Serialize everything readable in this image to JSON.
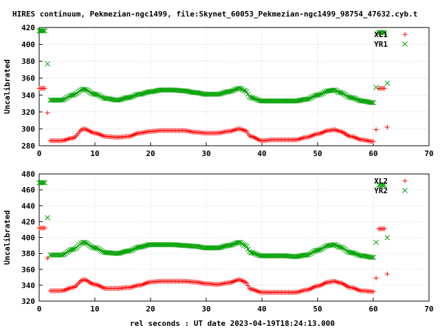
{
  "title": "HIRES continuum, Pekmezian-ngc1499, file:Skynet_60053_Pekmezian-ngc1499_98754_47632.cyb.t",
  "xlabel": "rel seconds : UT date 2023-04-19T18:24:13.000",
  "colors": {
    "red": "#ff0000",
    "green": "#00a000"
  },
  "chart_data": [
    {
      "type": "scatter",
      "xlim": [
        0,
        70
      ],
      "ylim": [
        280,
        420
      ],
      "yticks": [
        280,
        300,
        320,
        340,
        360,
        380,
        400,
        420
      ],
      "xticks": [
        0,
        10,
        20,
        30,
        40,
        50,
        60,
        70
      ],
      "ylabel": "Uncalibrated",
      "legend": "top-right",
      "grid": true,
      "series": [
        {
          "name": "XL1",
          "marker": "+",
          "color": "#ff0000",
          "x": [
            0,
            1,
            1.5,
            2,
            4,
            6,
            8,
            10,
            12,
            14,
            16,
            18,
            20,
            22,
            24,
            26,
            28,
            30,
            32,
            34,
            36,
            37,
            38,
            40,
            42,
            44,
            46,
            48,
            50,
            52,
            53,
            54,
            56,
            58,
            60,
            60.5,
            61,
            62,
            62.5
          ],
          "y": [
            348,
            348,
            319,
            286,
            286,
            289,
            300,
            295,
            291,
            290,
            291,
            295,
            297,
            298,
            298,
            298,
            296,
            295,
            295,
            297,
            300,
            298,
            291,
            286,
            287,
            287,
            287,
            290,
            294,
            298,
            299,
            297,
            291,
            287,
            285,
            299,
            348,
            348,
            302
          ]
        },
        {
          "name": "YR1",
          "marker": "x",
          "color": "#00a000",
          "x": [
            0,
            1,
            1.5,
            2,
            4,
            6,
            8,
            10,
            12,
            14,
            16,
            18,
            20,
            22,
            24,
            26,
            28,
            30,
            32,
            34,
            36,
            37,
            38,
            40,
            42,
            44,
            46,
            48,
            50,
            52,
            53,
            54,
            56,
            58,
            60,
            60.5,
            61,
            62,
            62.5
          ],
          "y": [
            416,
            416,
            377,
            334,
            334,
            340,
            347,
            341,
            336,
            334,
            337,
            341,
            344,
            346,
            346,
            345,
            343,
            341,
            341,
            344,
            348,
            345,
            337,
            333,
            333,
            333,
            333,
            335,
            340,
            345,
            346,
            343,
            337,
            333,
            331,
            349,
            414,
            414,
            354
          ]
        }
      ]
    },
    {
      "type": "scatter",
      "xlim": [
        0,
        70
      ],
      "ylim": [
        320,
        480
      ],
      "yticks": [
        320,
        340,
        360,
        380,
        400,
        420,
        440,
        460,
        480
      ],
      "xticks": [
        0,
        10,
        20,
        30,
        40,
        50,
        60,
        70
      ],
      "ylabel": "Uncalibrated",
      "legend": "top-right",
      "grid": true,
      "series": [
        {
          "name": "XL2",
          "marker": "+",
          "color": "#ff0000",
          "x": [
            0,
            1,
            1.5,
            2,
            4,
            6,
            8,
            10,
            12,
            14,
            16,
            18,
            20,
            22,
            24,
            26,
            28,
            30,
            32,
            34,
            36,
            37,
            38,
            40,
            42,
            44,
            46,
            48,
            50,
            52,
            53,
            54,
            56,
            58,
            60,
            60.5,
            61,
            62,
            62.5
          ],
          "y": [
            412,
            412,
            374,
            333,
            333,
            337,
            347,
            341,
            336,
            336,
            337,
            340,
            344,
            345,
            345,
            345,
            344,
            342,
            341,
            343,
            347,
            344,
            335,
            331,
            331,
            331,
            331,
            334,
            339,
            344,
            345,
            343,
            337,
            333,
            332,
            349,
            411,
            411,
            354
          ]
        },
        {
          "name": "YR2",
          "marker": "x",
          "color": "#00a000",
          "x": [
            0,
            1,
            1.5,
            2,
            4,
            6,
            8,
            10,
            12,
            14,
            16,
            18,
            20,
            22,
            24,
            26,
            28,
            30,
            32,
            34,
            36,
            37,
            38,
            40,
            42,
            44,
            46,
            48,
            50,
            52,
            53,
            54,
            56,
            58,
            60,
            60.5,
            61,
            62,
            62.5
          ],
          "y": [
            469,
            469,
            425,
            378,
            378,
            385,
            394,
            387,
            381,
            380,
            383,
            388,
            391,
            391,
            391,
            390,
            389,
            387,
            387,
            390,
            394,
            390,
            381,
            377,
            377,
            377,
            376,
            378,
            384,
            390,
            391,
            388,
            381,
            377,
            375,
            394,
            466,
            466,
            400
          ]
        }
      ]
    }
  ]
}
